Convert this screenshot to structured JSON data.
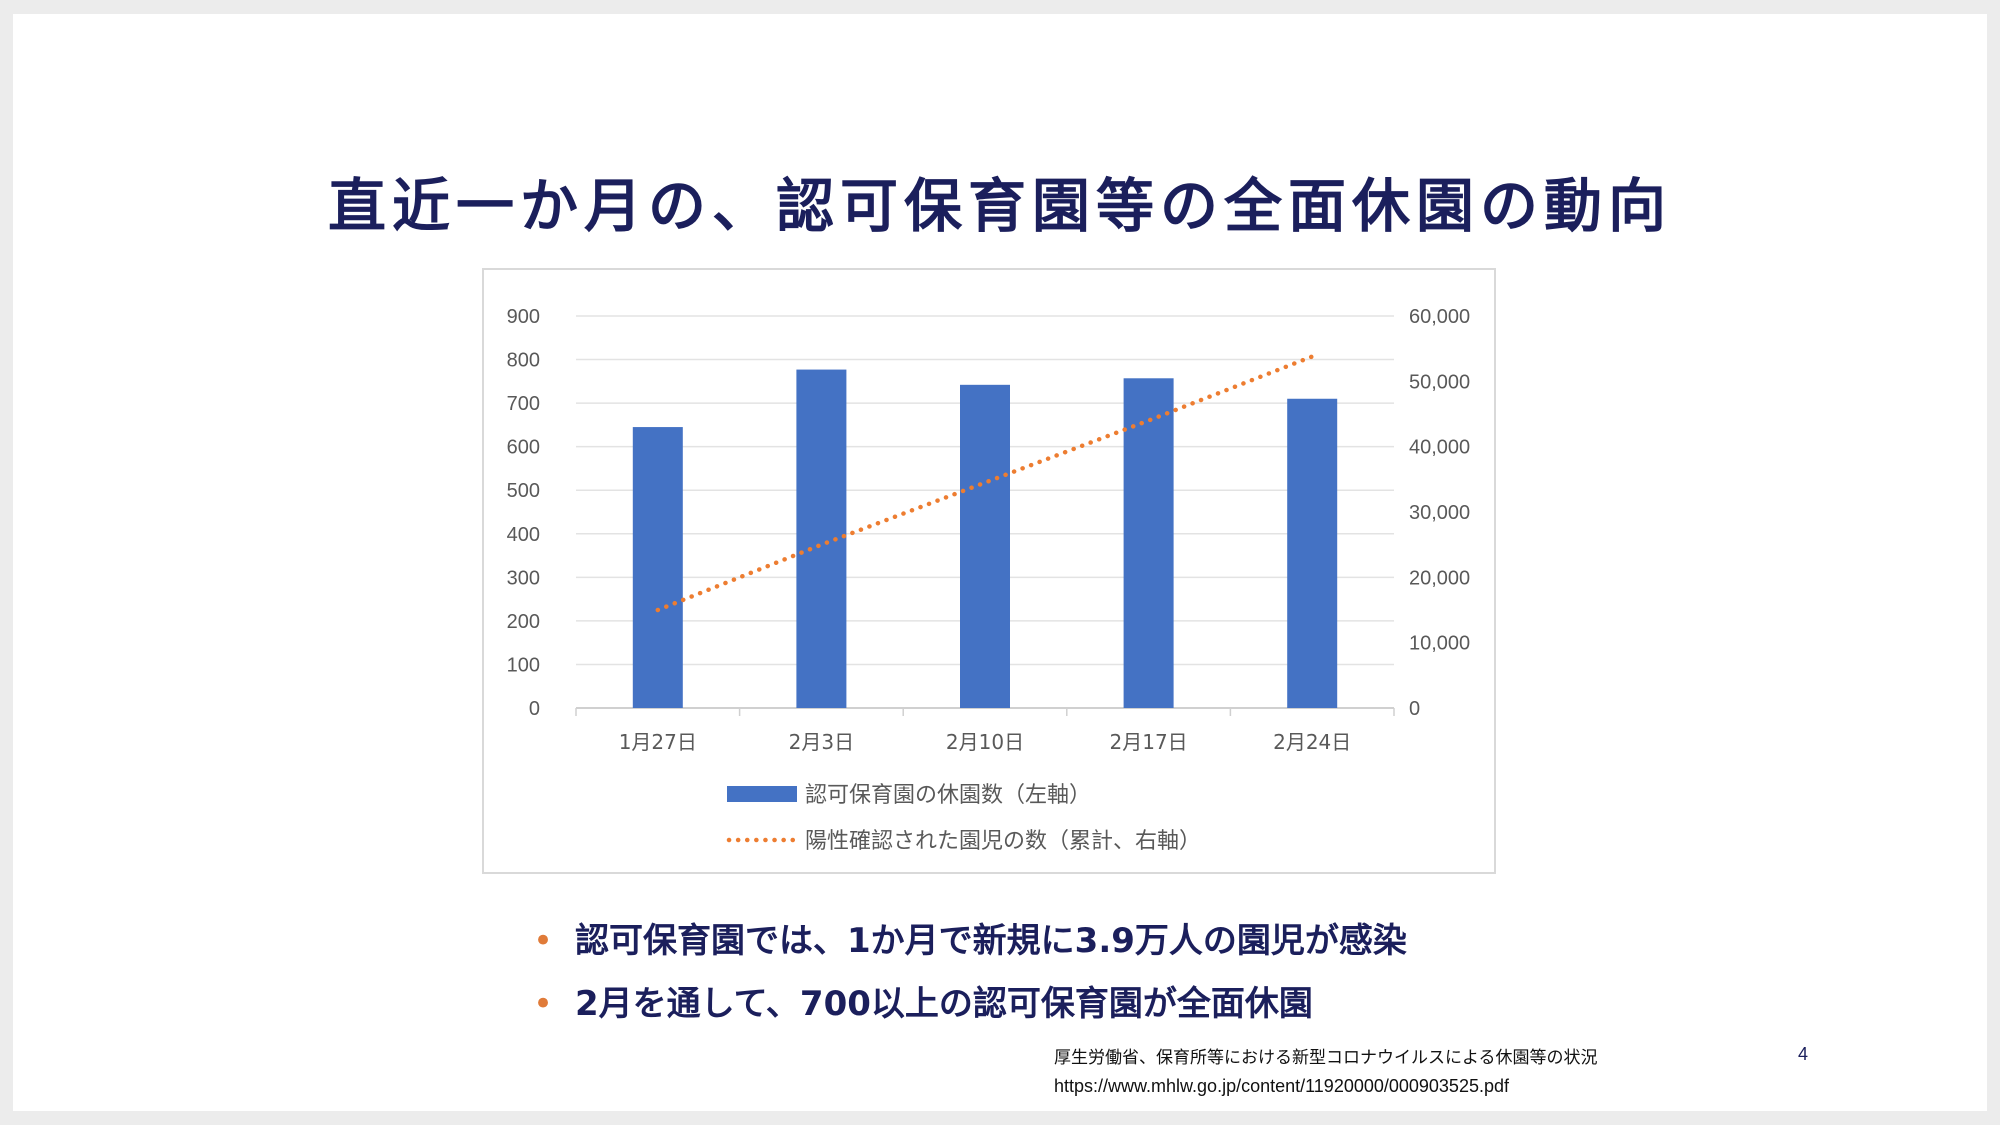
{
  "slide": {
    "title": "直近一か月の、認可保育園等の全面休園の動向",
    "bullet_marker": "•",
    "bullets": [
      "認可保育園では、1か月で新規に3.9万人の園児が感染",
      "2月を通して、700以上の認可保育園が全面休園"
    ],
    "source_line1": "厚生労働省、保育所等における新型コロナウイルスによる休園等の状況",
    "source_line2": "https://www.mhlw.go.jp/content/11920000/000903525.pdf",
    "page_number": "4"
  },
  "chart_data": {
    "type": "bar",
    "categories": [
      "1月27日",
      "2月3日",
      "2月10日",
      "2月17日",
      "2月24日"
    ],
    "series": [
      {
        "name": "認可保育園の休園数（左軸）",
        "type": "bar",
        "axis": "left",
        "color": "#4472c4",
        "values": [
          645,
          777,
          742,
          757,
          710
        ]
      },
      {
        "name": "陽性確認された園児の数（累計、右軸）",
        "type": "line",
        "line_style": "dotted",
        "axis": "right",
        "color": "#ed7d31",
        "values": [
          15000,
          25000,
          34500,
          44000,
          53800
        ]
      }
    ],
    "y_left": {
      "lim": [
        0,
        900
      ],
      "ticks": [
        "0",
        "100",
        "200",
        "300",
        "400",
        "500",
        "600",
        "700",
        "800",
        "900"
      ]
    },
    "y_right": {
      "lim": [
        0,
        60000
      ],
      "ticks": [
        "0",
        "10,000",
        "20,000",
        "30,000",
        "40,000",
        "50,000",
        "60,000"
      ]
    },
    "grid": true,
    "legend_position": "bottom"
  }
}
